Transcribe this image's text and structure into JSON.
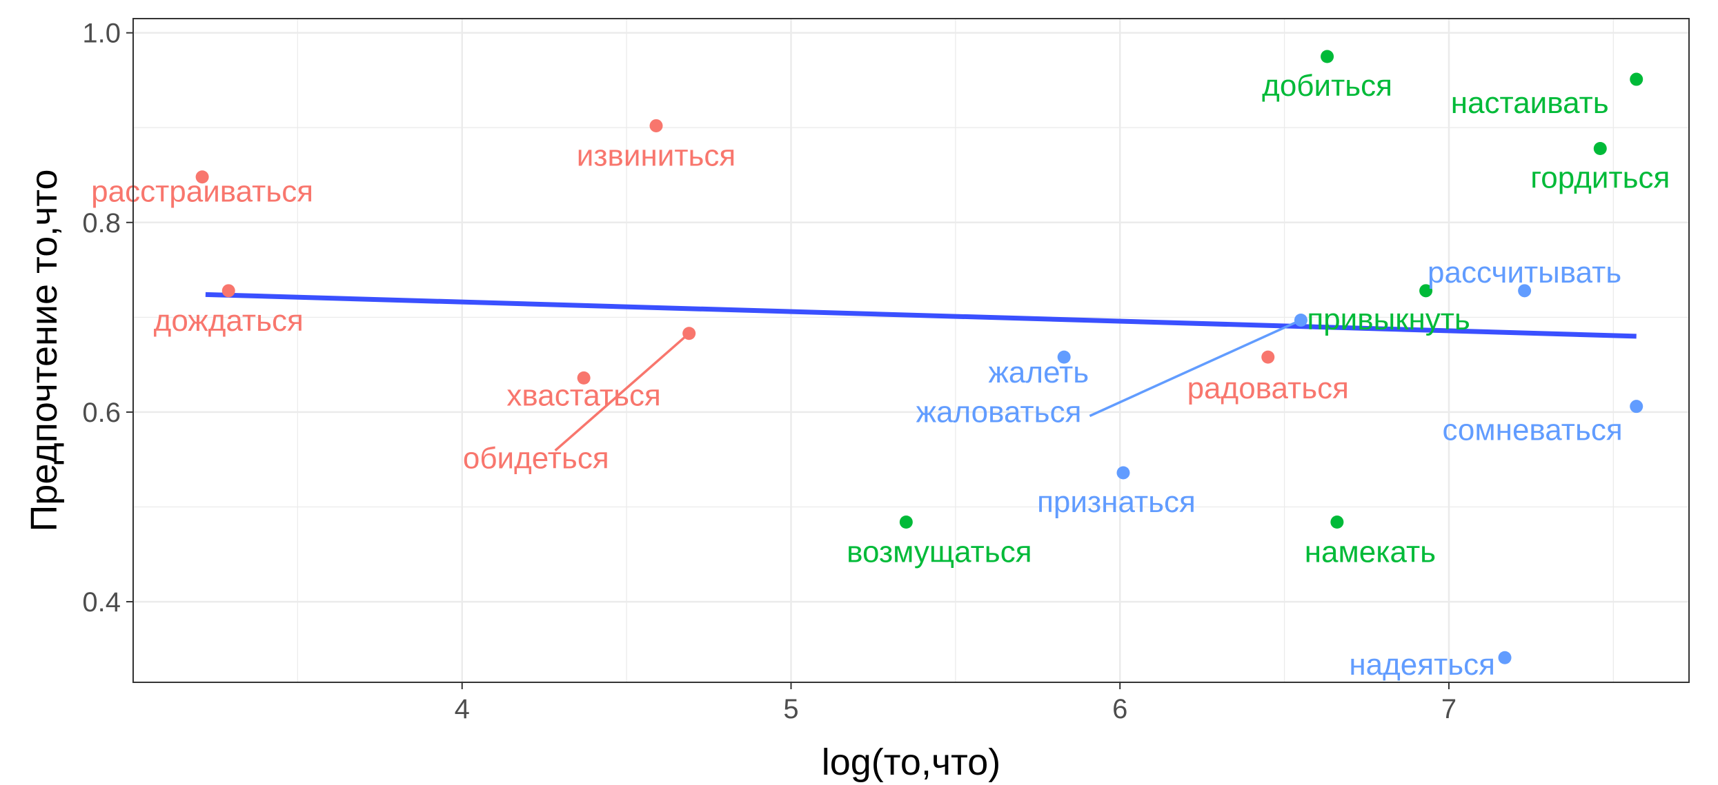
{
  "chart_data": {
    "type": "scatter",
    "xlabel": "log(то,что)",
    "ylabel": "Предпочтение то,что",
    "xlim": [
      3.0,
      7.73
    ],
    "ylim": [
      0.315,
      1.015
    ],
    "x_ticks": [
      4,
      5,
      6,
      7
    ],
    "x_tick_labels": [
      "4",
      "5",
      "6",
      "7"
    ],
    "y_ticks": [
      0.4,
      0.6,
      0.8,
      1.0
    ],
    "y_tick_labels": [
      "0.4",
      "0.6",
      "0.8",
      "1.0"
    ],
    "grid": true,
    "legend": "none",
    "colors": {
      "red": "#f8766d",
      "green": "#00ba38",
      "blue": "#619cff",
      "trend": "#3a50ff"
    },
    "points": [
      {
        "label": "расстраиваться",
        "x": 3.21,
        "y": 0.848,
        "color": "red"
      },
      {
        "label": "дождаться",
        "x": 3.29,
        "y": 0.728,
        "color": "red"
      },
      {
        "label": "извиниться",
        "x": 4.59,
        "y": 0.902,
        "color": "red"
      },
      {
        "label": "хвастаться",
        "x": 4.37,
        "y": 0.636,
        "color": "red"
      },
      {
        "label": "обидеться",
        "x": 4.69,
        "y": 0.683,
        "color": "red"
      },
      {
        "label": "радоваться",
        "x": 6.45,
        "y": 0.658,
        "color": "red"
      },
      {
        "label": "добиться",
        "x": 6.63,
        "y": 0.975,
        "color": "green"
      },
      {
        "label": "настаивать",
        "x": 7.57,
        "y": 0.951,
        "color": "green"
      },
      {
        "label": "гордиться",
        "x": 7.46,
        "y": 0.878,
        "color": "green"
      },
      {
        "label": "привыкнуть",
        "x": 6.93,
        "y": 0.728,
        "color": "green"
      },
      {
        "label": "возмущаться",
        "x": 5.35,
        "y": 0.484,
        "color": "green"
      },
      {
        "label": "намекать",
        "x": 6.66,
        "y": 0.484,
        "color": "green"
      },
      {
        "label": "рассчитывать",
        "x": 7.23,
        "y": 0.728,
        "color": "blue"
      },
      {
        "label": "жалеть",
        "x": 5.83,
        "y": 0.658,
        "color": "blue"
      },
      {
        "label": "жаловаться",
        "x": 6.55,
        "y": 0.697,
        "color": "blue"
      },
      {
        "label": "сомневаться",
        "x": 7.57,
        "y": 0.606,
        "color": "blue"
      },
      {
        "label": "признаться",
        "x": 6.01,
        "y": 0.536,
        "color": "blue"
      },
      {
        "label": "надеяться",
        "x": 7.17,
        "y": 0.341,
        "color": "blue"
      }
    ],
    "trend_line": {
      "x": [
        3.22,
        7.57
      ],
      "y": [
        0.724,
        0.68
      ]
    }
  }
}
